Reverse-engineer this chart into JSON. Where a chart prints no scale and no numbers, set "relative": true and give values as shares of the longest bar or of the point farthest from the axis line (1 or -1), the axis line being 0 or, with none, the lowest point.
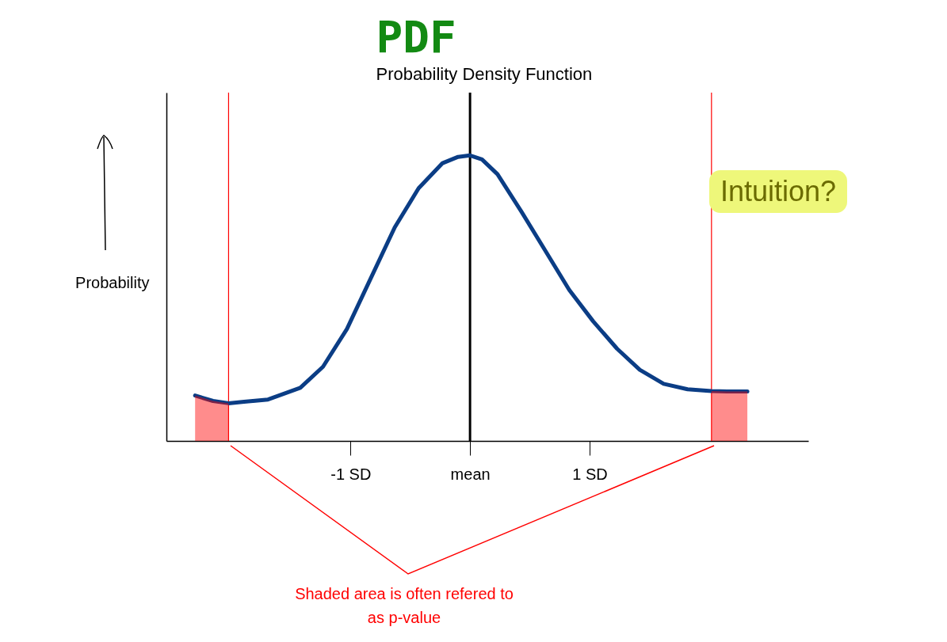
{
  "chart_data": {
    "type": "line",
    "title": "PDF",
    "subtitle": "Probability Density Function",
    "ylabel": "Probability",
    "relative": true,
    "grid": false,
    "marker": "none",
    "line_style": "solid",
    "xlim": [
      -2.54,
      2.83
    ],
    "xticks": [
      {
        "value": -1,
        "label": "-1 SD"
      },
      {
        "value": 0,
        "label": "mean"
      },
      {
        "value": 1,
        "label": "1 SD"
      }
    ],
    "series": [
      {
        "color": "#0b3d85",
        "x": [
          -2.3,
          -2.15,
          -2.02,
          -1.89,
          -1.69,
          -1.42,
          -1.23,
          -1.03,
          -0.83,
          -0.63,
          -0.43,
          -0.23,
          -0.1,
          0,
          0.1,
          0.23,
          0.43,
          0.63,
          0.83,
          1.03,
          1.23,
          1.42,
          1.62,
          1.82,
          2.02,
          2.15,
          2.32
        ],
        "values": [
          0.159,
          0.14,
          0.132,
          0.137,
          0.145,
          0.186,
          0.26,
          0.392,
          0.57,
          0.748,
          0.885,
          0.973,
          0.995,
          1,
          0.986,
          0.934,
          0.803,
          0.666,
          0.529,
          0.419,
          0.323,
          0.249,
          0.2,
          0.181,
          0.175,
          0.173,
          0.173
        ]
      },
      {
        "type": "area",
        "color": "#ff0000",
        "x": [
          -2.3,
          -2.15,
          -2.02
        ],
        "values": [
          0.159,
          0.14,
          0.132
        ]
      },
      {
        "type": "area",
        "color": "#ff0000",
        "x": [
          2.02,
          2.15,
          2.32
        ],
        "values": [
          0.175,
          0.173,
          0.173
        ]
      }
    ],
    "ref_lines": [
      {
        "axis": "x",
        "value": 0,
        "color": "#000000"
      },
      {
        "axis": "x",
        "value": -2.02,
        "color": "#ff0000"
      },
      {
        "axis": "x",
        "value": 2.02,
        "color": "#ff0000"
      }
    ],
    "annotations": [
      "Intuition?",
      "Shaded area is often refered to as p-value"
    ]
  }
}
